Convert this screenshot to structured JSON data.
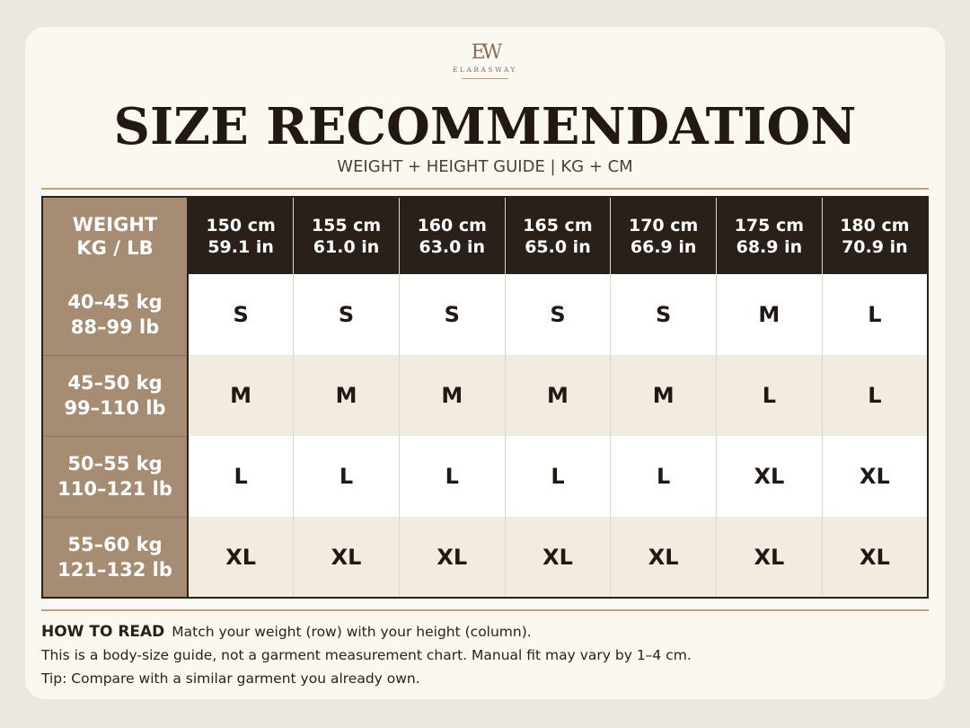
{
  "brand": {
    "mark": "EW",
    "name": "ELARASWAY"
  },
  "title": "SIZE RECOMMENDATION",
  "subtitle": "WEIGHT + HEIGHT GUIDE | KG + CM",
  "table": {
    "corner": {
      "line1": "WEIGHT",
      "line2": "KG / LB"
    },
    "columns": [
      {
        "cm": "150 cm",
        "inch": "59.1 in"
      },
      {
        "cm": "155 cm",
        "inch": "61.0 in"
      },
      {
        "cm": "160 cm",
        "inch": "63.0 in"
      },
      {
        "cm": "165 cm",
        "inch": "65.0 in"
      },
      {
        "cm": "170 cm",
        "inch": "66.9 in"
      },
      {
        "cm": "175 cm",
        "inch": "68.9 in"
      },
      {
        "cm": "180 cm",
        "inch": "70.9 in"
      }
    ],
    "rows": [
      {
        "kg": "40–45 kg",
        "lb": "88–99 lb",
        "sizes": [
          "S",
          "S",
          "S",
          "S",
          "S",
          "M",
          "L"
        ]
      },
      {
        "kg": "45–50 kg",
        "lb": "99–110 lb",
        "sizes": [
          "M",
          "M",
          "M",
          "M",
          "M",
          "L",
          "L"
        ]
      },
      {
        "kg": "50–55 kg",
        "lb": "110–121 lb",
        "sizes": [
          "L",
          "L",
          "L",
          "L",
          "L",
          "XL",
          "XL"
        ]
      },
      {
        "kg": "55–60 kg",
        "lb": "121–132 lb",
        "sizes": [
          "XL",
          "XL",
          "XL",
          "XL",
          "XL",
          "XL",
          "XL"
        ]
      }
    ]
  },
  "howto": {
    "label": "HOW TO READ",
    "line1": "Match your weight (row) with your height (column).",
    "line2": "This is a body-size guide, not a garment measurement chart. Manual fit may vary by 1–4 cm.",
    "line3": "Tip: Compare with a similar garment you already own."
  },
  "colors": {
    "page_bg": "#ece7df",
    "card_bg": "#fbf8f2",
    "header_dark": "#2a201a",
    "weight_tan": "#a68c72",
    "row_alt": "#f2ebe0",
    "rule_gold": "#bda27a"
  }
}
